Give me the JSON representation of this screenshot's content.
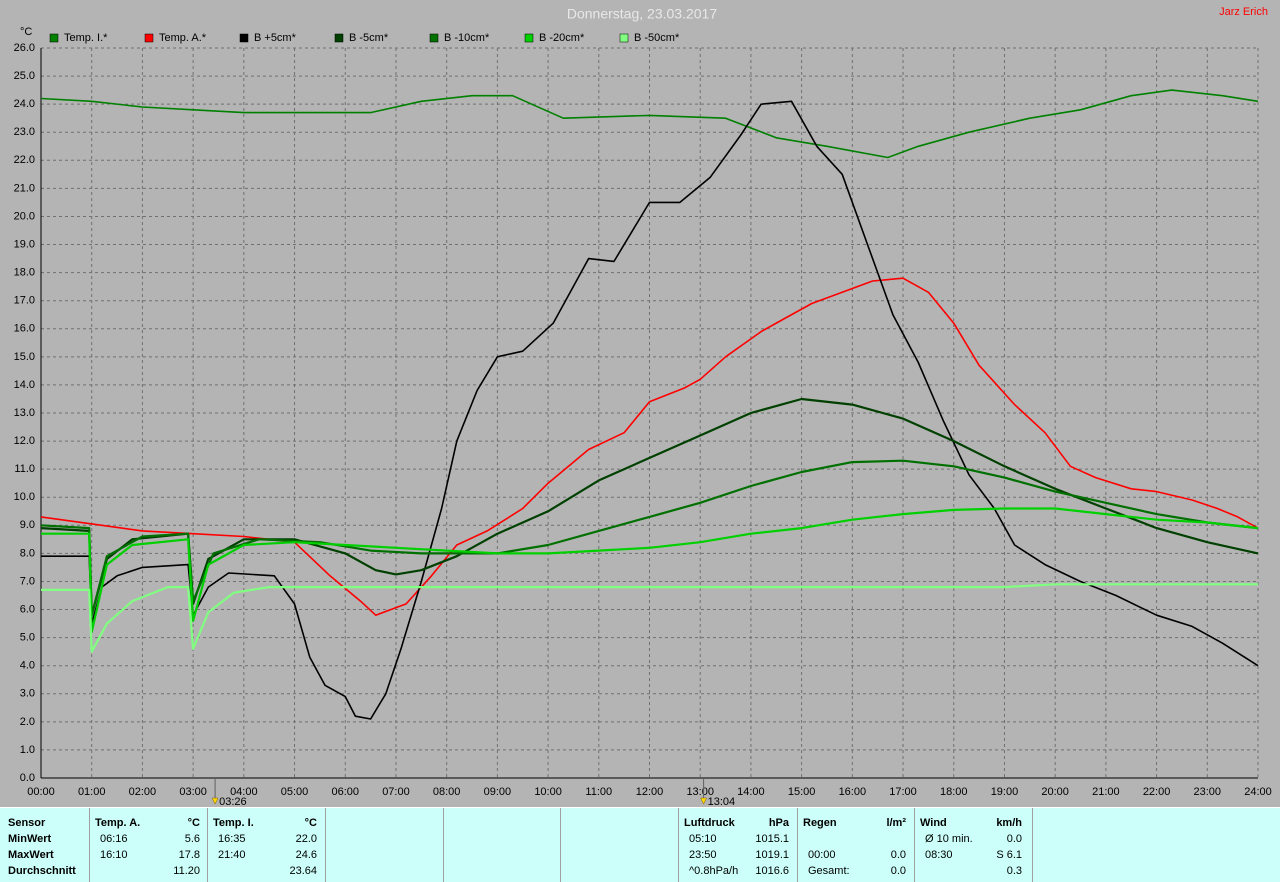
{
  "chart_data": {
    "type": "line",
    "title": "Donnerstag, 23.03.2017",
    "author": "Jarz Erich",
    "y_label": "°C",
    "xlim": [
      0,
      24
    ],
    "xticks": [
      {
        "value": 0,
        "label": "00:00"
      },
      {
        "value": 1,
        "label": "01:00"
      },
      {
        "value": 2,
        "label": "02:00"
      },
      {
        "value": 3,
        "label": "03:00"
      },
      {
        "value": 4,
        "label": "04:00"
      },
      {
        "value": 5,
        "label": "05:00"
      },
      {
        "value": 6,
        "label": "06:00"
      },
      {
        "value": 7,
        "label": "07:00"
      },
      {
        "value": 8,
        "label": "08:00"
      },
      {
        "value": 9,
        "label": "09:00"
      },
      {
        "value": 10,
        "label": "10:00"
      },
      {
        "value": 11,
        "label": "11:00"
      },
      {
        "value": 12,
        "label": "12:00"
      },
      {
        "value": 13,
        "label": "13:00"
      },
      {
        "value": 14,
        "label": "14:00"
      },
      {
        "value": 15,
        "label": "15:00"
      },
      {
        "value": 16,
        "label": "16:00"
      },
      {
        "value": 17,
        "label": "17:00"
      },
      {
        "value": 18,
        "label": "18:00"
      },
      {
        "value": 19,
        "label": "19:00"
      },
      {
        "value": 20,
        "label": "20:00"
      },
      {
        "value": 21,
        "label": "21:00"
      },
      {
        "value": 22,
        "label": "22:00"
      },
      {
        "value": 23,
        "label": "23:00"
      },
      {
        "value": 24,
        "label": "24:00"
      }
    ],
    "ylim": [
      0,
      26
    ],
    "yticks": [
      {
        "value": 0,
        "label": "0.0"
      },
      {
        "value": 1,
        "label": "1.0"
      },
      {
        "value": 2,
        "label": "2.0"
      },
      {
        "value": 3,
        "label": "3.0"
      },
      {
        "value": 4,
        "label": "4.0"
      },
      {
        "value": 5,
        "label": "5.0"
      },
      {
        "value": 6,
        "label": "6.0"
      },
      {
        "value": 7,
        "label": "7.0"
      },
      {
        "value": 8,
        "label": "8.0"
      },
      {
        "value": 9,
        "label": "9.0"
      },
      {
        "value": 10,
        "label": "10.0"
      },
      {
        "value": 11,
        "label": "11.0"
      },
      {
        "value": 12,
        "label": "12.0"
      },
      {
        "value": 13,
        "label": "13.0"
      },
      {
        "value": 14,
        "label": "14.0"
      },
      {
        "value": 15,
        "label": "15.0"
      },
      {
        "value": 16,
        "label": "16.0"
      },
      {
        "value": 17,
        "label": "17.0"
      },
      {
        "value": 18,
        "label": "18.0"
      },
      {
        "value": 19,
        "label": "19.0"
      },
      {
        "value": 20,
        "label": "20.0"
      },
      {
        "value": 21,
        "label": "21.0"
      },
      {
        "value": 22,
        "label": "22.0"
      },
      {
        "value": 23,
        "label": "23.0"
      },
      {
        "value": 24,
        "label": "24.0"
      },
      {
        "value": 25,
        "label": "25.0"
      },
      {
        "value": 26,
        "label": "26.0"
      }
    ],
    "grid": true,
    "markers": [
      {
        "value": 3.433,
        "label": "03:26"
      },
      {
        "value": 13.067,
        "label": "13:04"
      }
    ],
    "series": [
      {
        "name": "Temp. I.*",
        "color": "#008000",
        "x": [
          0,
          1,
          2,
          3,
          4,
          5,
          6.5,
          7.5,
          8.5,
          9.3,
          10.3,
          12,
          13.5,
          14.5,
          15.5,
          16.7,
          17.3,
          18.3,
          19.5,
          20.5,
          21.5,
          22.3,
          23.3,
          24
        ],
        "values": [
          24.2,
          24.1,
          23.9,
          23.8,
          23.7,
          23.7,
          23.7,
          24.1,
          24.3,
          24.3,
          23.5,
          23.6,
          23.5,
          22.8,
          22.5,
          22.1,
          22.5,
          23.0,
          23.5,
          23.8,
          24.3,
          24.5,
          24.3,
          24.1
        ]
      },
      {
        "name": "Temp. A.*",
        "color": "#ff0000",
        "x": [
          0,
          1.2,
          2,
          3,
          4,
          5,
          5.7,
          6.3,
          6.6,
          7.2,
          7.7,
          8.2,
          8.8,
          9.5,
          10,
          10.8,
          11.5,
          12,
          12.7,
          13,
          13.5,
          14.2,
          14.7,
          15.2,
          15.8,
          16.4,
          17,
          17.5,
          18,
          18.5,
          19.2,
          19.8,
          20.3,
          20.8,
          21.5,
          22,
          22.7,
          23.2,
          23.6,
          24
        ],
        "values": [
          9.3,
          9.0,
          8.8,
          8.7,
          8.6,
          8.4,
          7.2,
          6.3,
          5.8,
          6.2,
          7.2,
          8.3,
          8.8,
          9.6,
          10.5,
          11.7,
          12.3,
          13.4,
          13.9,
          14.2,
          15.0,
          15.9,
          16.4,
          16.9,
          17.3,
          17.7,
          17.8,
          17.3,
          16.2,
          14.7,
          13.3,
          12.3,
          11.1,
          10.7,
          10.3,
          10.2,
          9.9,
          9.6,
          9.3,
          8.9
        ]
      },
      {
        "name": "B +5cm*",
        "color": "#000000",
        "x": [
          0,
          0.95,
          1,
          1.2,
          1.5,
          2,
          2.9,
          3,
          3.3,
          3.7,
          4.6,
          5,
          5.3,
          5.6,
          6,
          6.2,
          6.5,
          6.8,
          7.1,
          7.5,
          7.9,
          8.2,
          8.6,
          9,
          9.5,
          10.1,
          10.8,
          11.3,
          12,
          12.6,
          13.2,
          13.8,
          14.2,
          14.8,
          15.3,
          15.8,
          16.3,
          16.8,
          17.3,
          17.8,
          18.3,
          18.8,
          19.2,
          19.8,
          20.5,
          21.2,
          22,
          22.7,
          23.3,
          24
        ],
        "values": [
          7.9,
          7.9,
          5.5,
          6.8,
          7.2,
          7.5,
          7.6,
          5.8,
          6.8,
          7.3,
          7.2,
          6.2,
          4.3,
          3.3,
          2.9,
          2.2,
          2.1,
          3.0,
          4.6,
          7.0,
          9.6,
          12.0,
          13.8,
          15.0,
          15.2,
          16.2,
          18.5,
          18.4,
          20.5,
          20.5,
          21.4,
          22.9,
          24.0,
          24.1,
          22.5,
          21.5,
          19.0,
          16.5,
          14.8,
          12.7,
          10.8,
          9.6,
          8.3,
          7.6,
          7.0,
          6.5,
          5.8,
          5.4,
          4.8,
          4.0
        ]
      },
      {
        "name": "B -5cm*",
        "color": "#004000",
        "x": [
          0,
          0.95,
          1,
          1.3,
          1.8,
          2.9,
          3,
          3.3,
          4,
          5,
          6,
          6.6,
          7,
          7.5,
          8.2,
          9,
          10,
          11,
          12,
          13,
          14,
          15,
          16,
          17,
          18,
          19,
          20,
          21,
          22,
          23,
          24
        ],
        "values": [
          8.9,
          8.8,
          5.8,
          7.8,
          8.5,
          8.7,
          6.2,
          7.8,
          8.5,
          8.5,
          8.0,
          7.4,
          7.25,
          7.4,
          7.9,
          8.7,
          9.5,
          10.6,
          11.4,
          12.2,
          13.0,
          13.5,
          13.3,
          12.8,
          12.0,
          11.1,
          10.3,
          9.6,
          8.9,
          8.4,
          8.0
        ]
      },
      {
        "name": "B -10cm*",
        "color": "#007000",
        "x": [
          0,
          0.95,
          1,
          1.3,
          2,
          2.9,
          3,
          3.4,
          4.3,
          5.5,
          6.5,
          7.5,
          9,
          10,
          11,
          12,
          13,
          14,
          15,
          16,
          17,
          18,
          19,
          20,
          21,
          22,
          23,
          24
        ],
        "values": [
          9.0,
          8.9,
          5.8,
          7.9,
          8.6,
          8.7,
          6.3,
          8.0,
          8.5,
          8.4,
          8.1,
          8.0,
          8.0,
          8.3,
          8.8,
          9.3,
          9.8,
          10.4,
          10.9,
          11.25,
          11.3,
          11.1,
          10.7,
          10.2,
          9.8,
          9.4,
          9.1,
          8.9
        ]
      },
      {
        "name": "B -20cm*",
        "color": "#00d000",
        "x": [
          0,
          0.95,
          1,
          1.3,
          1.8,
          2.9,
          3,
          3.3,
          4,
          5,
          6,
          7,
          8,
          9,
          10,
          11,
          12,
          13,
          14,
          15,
          16,
          17,
          18,
          19,
          20,
          21,
          22,
          23,
          24
        ],
        "values": [
          8.7,
          8.7,
          5.2,
          7.6,
          8.3,
          8.5,
          5.6,
          7.6,
          8.3,
          8.4,
          8.3,
          8.2,
          8.1,
          8.0,
          8.0,
          8.1,
          8.2,
          8.4,
          8.7,
          8.9,
          9.2,
          9.4,
          9.55,
          9.6,
          9.6,
          9.4,
          9.2,
          9.1,
          8.9
        ]
      },
      {
        "name": "B -50cm*",
        "color": "#80ff80",
        "x": [
          0,
          0.95,
          1,
          1.3,
          1.8,
          2.5,
          2.9,
          3,
          3.3,
          3.8,
          4.5,
          10,
          19,
          20,
          24
        ],
        "values": [
          6.7,
          6.7,
          4.5,
          5.5,
          6.3,
          6.8,
          6.8,
          4.6,
          5.9,
          6.6,
          6.8,
          6.8,
          6.8,
          6.9,
          6.9
        ]
      }
    ]
  },
  "stats": {
    "row_labels": [
      "Sensor",
      "MinWert",
      "MaxWert",
      "Durchschnitt"
    ],
    "blocks": [
      {
        "title": "Temp. A.",
        "unit": "°C",
        "rows": [
          {
            "time": "06:16",
            "value": "5.6"
          },
          {
            "time": "16:10",
            "value": "17.8"
          },
          {
            "value": "11.20"
          }
        ]
      },
      {
        "title": "Temp. I.",
        "unit": "°C",
        "rows": [
          {
            "time": "16:35",
            "value": "22.0"
          },
          {
            "time": "21:40",
            "value": "24.6"
          },
          {
            "value": "23.64"
          }
        ]
      },
      {
        "title": "Luftdruck",
        "unit": "hPa",
        "rows": [
          {
            "time": "05:10",
            "value": "1015.1"
          },
          {
            "time": "23:50",
            "value": "1019.1"
          },
          {
            "time": "^0.8hPa/h",
            "value": "1016.6"
          }
        ]
      },
      {
        "title": "Regen",
        "unit": "l/m²",
        "rows": [
          null,
          {
            "time": "00:00",
            "value": "0.0"
          },
          {
            "time": "Gesamt:",
            "value": "0.0"
          }
        ]
      },
      {
        "title": "Wind",
        "unit": "km/h",
        "rows": [
          {
            "time": "Ø 10 min.",
            "value": "0.0"
          },
          {
            "time": "08:30",
            "value": "S 6.1"
          },
          {
            "value": "0.3"
          }
        ]
      }
    ]
  }
}
